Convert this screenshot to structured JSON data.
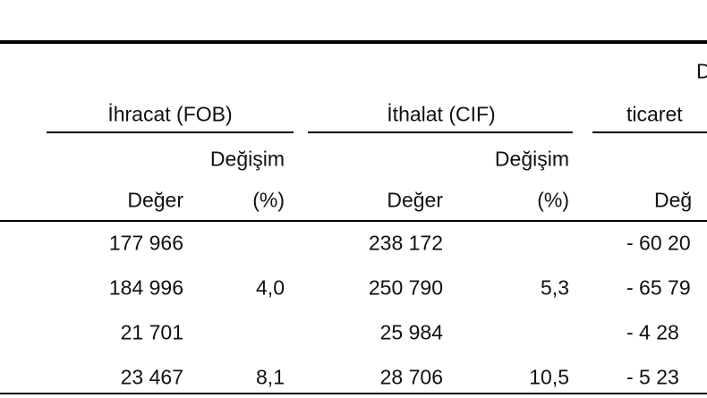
{
  "table": {
    "headers": {
      "top_right": "D",
      "groups": [
        "İhracat (FOB)",
        "İthalat (CIF)",
        "ticaret"
      ],
      "change_labels": [
        "Değişim",
        "Değişim"
      ],
      "columns": [
        "Değer",
        "(%)",
        "Değer",
        "(%)",
        "Değ"
      ]
    },
    "rows": [
      [
        "177 966",
        null,
        "238 172",
        null,
        "- 60 20"
      ],
      [
        "184 996",
        "4,0",
        "250 790",
        "5,3",
        "- 65 79"
      ],
      [
        "21 701",
        null,
        "25 984",
        null,
        "- 4 28"
      ],
      [
        "23 467",
        "8,1",
        "28 706",
        "10,5",
        "- 5 23"
      ]
    ]
  }
}
